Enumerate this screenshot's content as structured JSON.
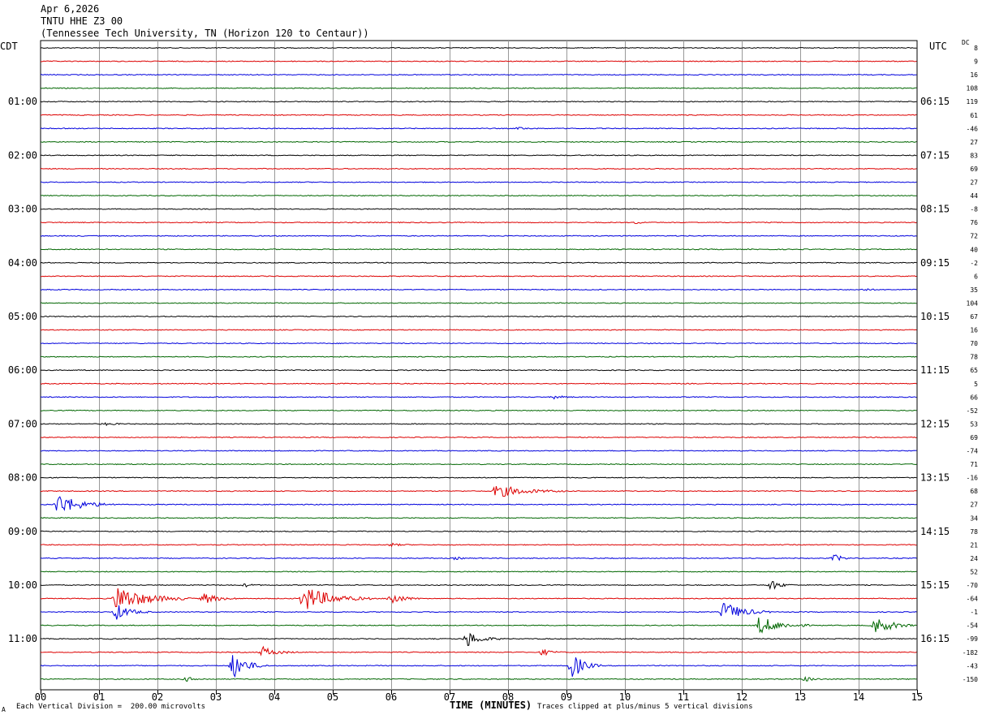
{
  "header": {
    "date": "Apr 6,2026",
    "station": "TNTU HHE Z3 00",
    "location": "(Tennessee Tech University, TN (Horizon 120 to Centaur))"
  },
  "left_timezone": "CDT",
  "right_timezone": "UTC",
  "dc_label": "DC",
  "footer": {
    "scale": "Each Vertical Division =  200.00 microvolts",
    "xlabel": "TIME (MINUTES)",
    "clip_note": "Traces clipped at plus/minus 5 vertical divisions"
  },
  "corner_mark": "A",
  "colors": {
    "trace_cycle": [
      "#000000",
      "#dd0000",
      "#0000dd",
      "#006600"
    ],
    "grid": "#999999",
    "frame": "#000000"
  },
  "chart_data": {
    "type": "seismogram-helicorder",
    "x_range_minutes": [
      0,
      15
    ],
    "x_ticks": [
      "00",
      "01",
      "02",
      "03",
      "04",
      "05",
      "06",
      "07",
      "08",
      "09",
      "10",
      "11",
      "12",
      "13",
      "14",
      "15"
    ],
    "trace_count": 48,
    "trace_minutes": 15,
    "left_hour_labels": [
      {
        "label": "01:00",
        "trace": 4
      },
      {
        "label": "02:00",
        "trace": 8
      },
      {
        "label": "03:00",
        "trace": 12
      },
      {
        "label": "04:00",
        "trace": 16
      },
      {
        "label": "05:00",
        "trace": 20
      },
      {
        "label": "06:00",
        "trace": 24
      },
      {
        "label": "07:00",
        "trace": 28
      },
      {
        "label": "08:00",
        "trace": 32
      },
      {
        "label": "09:00",
        "trace": 36
      },
      {
        "label": "10:00",
        "trace": 40
      },
      {
        "label": "11:00",
        "trace": 44
      }
    ],
    "right_hour_labels": [
      {
        "label": "06:15",
        "trace": 4
      },
      {
        "label": "07:15",
        "trace": 8
      },
      {
        "label": "08:15",
        "trace": 12
      },
      {
        "label": "09:15",
        "trace": 16
      },
      {
        "label": "10:15",
        "trace": 20
      },
      {
        "label": "11:15",
        "trace": 24
      },
      {
        "label": "12:15",
        "trace": 28
      },
      {
        "label": "13:15",
        "trace": 32
      },
      {
        "label": "14:15",
        "trace": 36
      },
      {
        "label": "15:15",
        "trace": 40
      },
      {
        "label": "16:15",
        "trace": 44
      }
    ],
    "dc_offsets": [
      "8",
      "9",
      "16",
      "108",
      "119",
      "61",
      "-46",
      "27",
      "83",
      "69",
      "27",
      "44",
      "-8",
      "76",
      "72",
      "40",
      "-2",
      "6",
      "35",
      "104",
      "67",
      "16",
      "70",
      "78",
      "65",
      "5",
      "66",
      "-52",
      "53",
      "69",
      "-74",
      "71",
      "-16",
      "68",
      "27",
      "34",
      "78",
      "21",
      "24",
      "52",
      "-70",
      "-64",
      "-1",
      "-54",
      "-99",
      "-182",
      "-43",
      "-150"
    ],
    "events": [
      {
        "trace": 37,
        "minute": 6.0,
        "amplitude_div": 0.6,
        "duration_min": 0.35
      },
      {
        "trace": 6,
        "minute": 8.2,
        "amplitude_div": 0.4,
        "duration_min": 0.4
      },
      {
        "trace": 13,
        "minute": 10.2,
        "amplitude_div": 0.4,
        "duration_min": 0.3
      },
      {
        "trace": 18,
        "minute": 14.1,
        "amplitude_div": 0.4,
        "duration_min": 0.3
      },
      {
        "trace": 26,
        "minute": 8.8,
        "amplitude_div": 0.6,
        "duration_min": 0.4
      },
      {
        "trace": 28,
        "minute": 1.1,
        "amplitude_div": 0.5,
        "duration_min": 0.4
      },
      {
        "trace": 33,
        "minute": 7.8,
        "amplitude_div": 2.5,
        "duration_min": 1.2
      },
      {
        "trace": 34,
        "minute": 0.3,
        "amplitude_div": 4.0,
        "duration_min": 1.0
      },
      {
        "trace": 38,
        "minute": 7.1,
        "amplitude_div": 0.5,
        "duration_min": 0.3
      },
      {
        "trace": 38,
        "minute": 13.6,
        "amplitude_div": 1.5,
        "duration_min": 0.3
      },
      {
        "trace": 40,
        "minute": 12.5,
        "amplitude_div": 2.0,
        "duration_min": 0.4
      },
      {
        "trace": 40,
        "minute": 3.5,
        "amplitude_div": 0.6,
        "duration_min": 0.3
      },
      {
        "trace": 41,
        "minute": 1.3,
        "amplitude_div": 5.0,
        "duration_min": 1.3
      },
      {
        "trace": 41,
        "minute": 2.8,
        "amplitude_div": 2.0,
        "duration_min": 0.6
      },
      {
        "trace": 41,
        "minute": 4.5,
        "amplitude_div": 5.0,
        "duration_min": 1.2
      },
      {
        "trace": 41,
        "minute": 6.0,
        "amplitude_div": 2.5,
        "duration_min": 0.5
      },
      {
        "trace": 42,
        "minute": 1.3,
        "amplitude_div": 3.0,
        "duration_min": 0.6
      },
      {
        "trace": 42,
        "minute": 11.7,
        "amplitude_div": 4.0,
        "duration_min": 0.8
      },
      {
        "trace": 43,
        "minute": 12.3,
        "amplitude_div": 3.5,
        "duration_min": 0.9
      },
      {
        "trace": 43,
        "minute": 14.3,
        "amplitude_div": 3.0,
        "duration_min": 0.8
      },
      {
        "trace": 44,
        "minute": 7.3,
        "amplitude_div": 3.0,
        "duration_min": 0.6
      },
      {
        "trace": 45,
        "minute": 3.8,
        "amplitude_div": 2.0,
        "duration_min": 0.6
      },
      {
        "trace": 45,
        "minute": 8.6,
        "amplitude_div": 1.2,
        "duration_min": 0.4
      },
      {
        "trace": 46,
        "minute": 3.3,
        "amplitude_div": 5.0,
        "duration_min": 0.6
      },
      {
        "trace": 46,
        "minute": 9.1,
        "amplitude_div": 5.0,
        "duration_min": 0.5
      },
      {
        "trace": 47,
        "minute": 2.5,
        "amplitude_div": 0.8,
        "duration_min": 0.4
      },
      {
        "trace": 47,
        "minute": 13.1,
        "amplitude_div": 0.8,
        "duration_min": 0.4
      }
    ]
  }
}
